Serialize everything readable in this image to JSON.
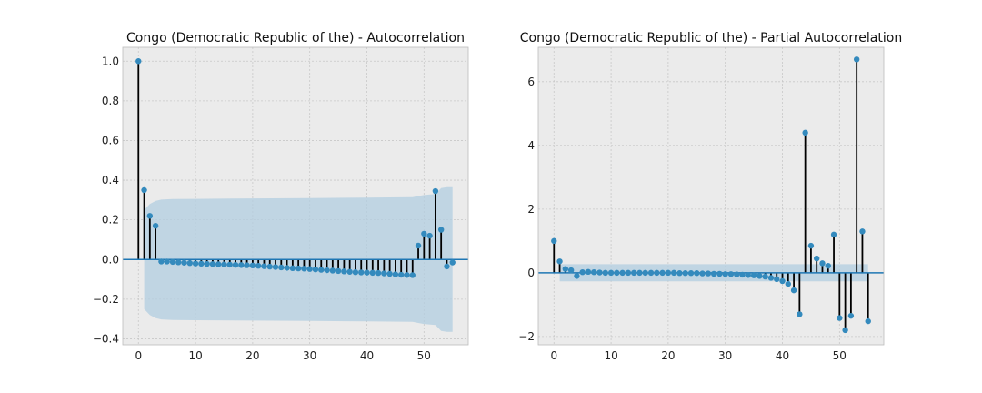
{
  "chart_data": [
    {
      "type": "stem",
      "title": "Congo (Democratic Republic of the) - Autocorrelation",
      "xlabel": "",
      "ylabel": "",
      "xlim": [
        -2.75,
        57.75
      ],
      "ylim": [
        -0.43,
        1.07
      ],
      "xticks": [
        0,
        10,
        20,
        30,
        40,
        50
      ],
      "yticks": [
        -0.4,
        -0.2,
        0.0,
        0.2,
        0.4,
        0.6,
        0.8,
        1.0
      ],
      "ytick_labels": [
        "−0.4",
        "−0.2",
        "0.0",
        "0.2",
        "0.4",
        "0.6",
        "0.8",
        "1.0"
      ],
      "grid": true,
      "x": [
        0,
        1,
        2,
        3,
        4,
        5,
        6,
        7,
        8,
        9,
        10,
        11,
        12,
        13,
        14,
        15,
        16,
        17,
        18,
        19,
        20,
        21,
        22,
        23,
        24,
        25,
        26,
        27,
        28,
        29,
        30,
        31,
        32,
        33,
        34,
        35,
        36,
        37,
        38,
        39,
        40,
        41,
        42,
        43,
        44,
        45,
        46,
        47,
        48,
        49,
        50,
        51,
        52,
        53,
        54,
        55
      ],
      "values": [
        1.0,
        0.35,
        0.22,
        0.17,
        -0.01,
        -0.01,
        -0.012,
        -0.014,
        -0.016,
        -0.018,
        -0.02,
        -0.021,
        -0.022,
        -0.023,
        -0.024,
        -0.025,
        -0.026,
        -0.027,
        -0.028,
        -0.029,
        -0.03,
        -0.032,
        -0.034,
        -0.036,
        -0.038,
        -0.04,
        -0.042,
        -0.044,
        -0.045,
        -0.046,
        -0.048,
        -0.05,
        -0.052,
        -0.054,
        -0.056,
        -0.058,
        -0.06,
        -0.062,
        -0.064,
        -0.065,
        -0.066,
        -0.067,
        -0.068,
        -0.07,
        -0.072,
        -0.075,
        -0.077,
        -0.078,
        -0.079,
        0.07,
        0.13,
        0.12,
        0.345,
        0.15,
        -0.035,
        -0.015
      ],
      "confidence_band": {
        "x": [
          1,
          2,
          3,
          4,
          6,
          10,
          20,
          30,
          40,
          48,
          49,
          50,
          52,
          53,
          54,
          55
        ],
        "upper": [
          0.25,
          0.28,
          0.295,
          0.302,
          0.305,
          0.306,
          0.308,
          0.31,
          0.312,
          0.314,
          0.32,
          0.325,
          0.33,
          0.36,
          0.365,
          0.365
        ]
      }
    },
    {
      "type": "stem",
      "title": "Congo (Democratic Republic of the) - Partial Autocorrelation",
      "xlabel": "",
      "ylabel": "",
      "xlim": [
        -2.75,
        57.75
      ],
      "ylim": [
        -2.26,
        7.08
      ],
      "xticks": [
        0,
        10,
        20,
        30,
        40,
        50
      ],
      "yticks": [
        -2,
        0,
        2,
        4,
        6
      ],
      "ytick_labels": [
        "−2",
        "0",
        "2",
        "4",
        "6"
      ],
      "grid": true,
      "x": [
        0,
        1,
        2,
        3,
        4,
        5,
        6,
        7,
        8,
        9,
        10,
        11,
        12,
        13,
        14,
        15,
        16,
        17,
        18,
        19,
        20,
        21,
        22,
        23,
        24,
        25,
        26,
        27,
        28,
        29,
        30,
        31,
        32,
        33,
        34,
        35,
        36,
        37,
        38,
        39,
        40,
        41,
        42,
        43,
        44,
        45,
        46,
        47,
        48,
        49,
        50,
        51,
        52,
        53,
        54,
        55
      ],
      "values": [
        1.0,
        0.36,
        0.12,
        0.08,
        -0.1,
        0.02,
        0.03,
        0.02,
        0.01,
        0.0,
        0.0,
        0.0,
        0.0,
        0.0,
        0.0,
        0.0,
        0.0,
        0.0,
        0.0,
        0.0,
        0.0,
        0.0,
        -0.01,
        -0.01,
        -0.01,
        -0.01,
        -0.02,
        -0.02,
        -0.03,
        -0.03,
        -0.04,
        -0.04,
        -0.05,
        -0.06,
        -0.07,
        -0.08,
        -0.1,
        -0.12,
        -0.16,
        -0.2,
        -0.26,
        -0.35,
        -0.55,
        -1.3,
        4.4,
        0.85,
        0.45,
        0.3,
        0.22,
        1.2,
        -1.42,
        -1.8,
        -1.35,
        6.7,
        1.3,
        -1.52
      ],
      "confidence_band": {
        "x": [
          1,
          55
        ],
        "upper": [
          0.27,
          0.27
        ]
      }
    }
  ]
}
